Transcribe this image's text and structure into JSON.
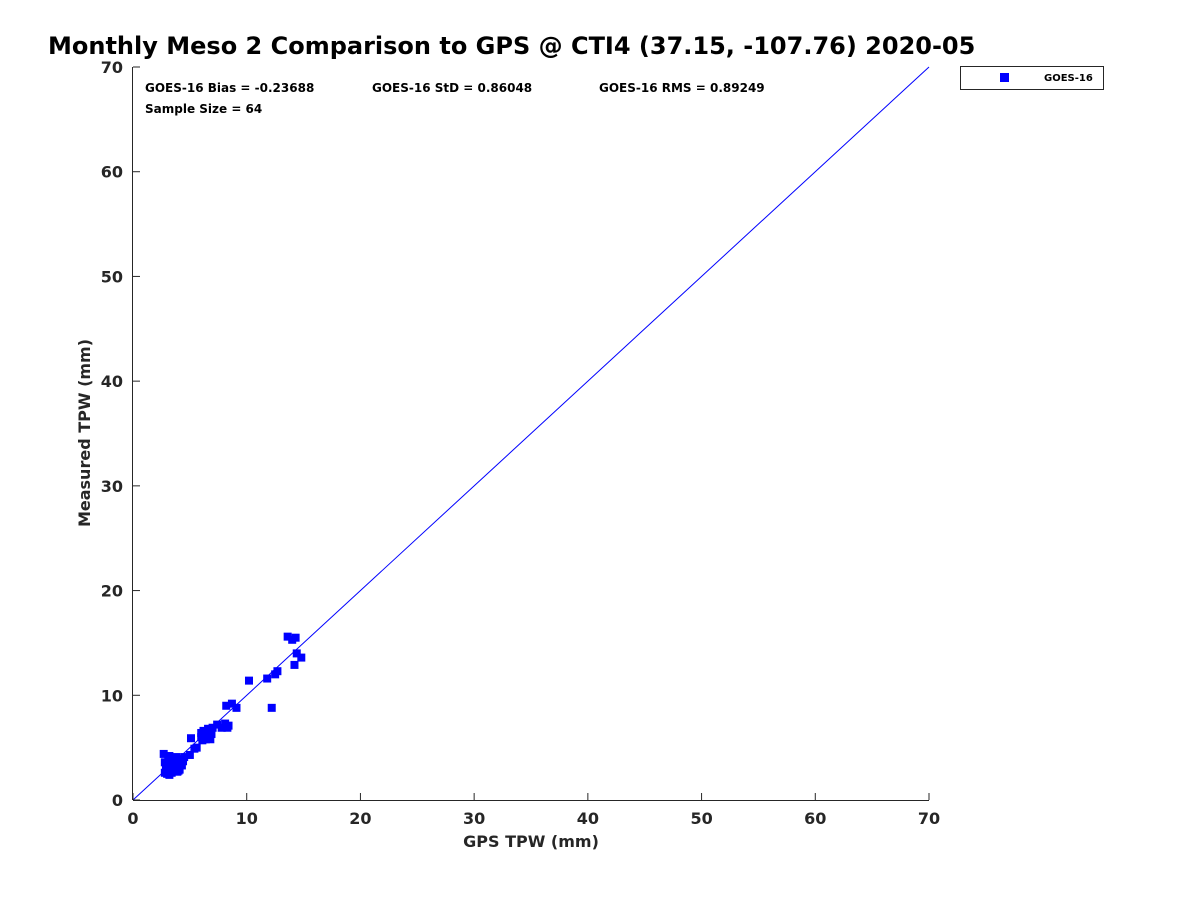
{
  "chart_data": {
    "type": "scatter",
    "title": "Monthly Meso 2 Comparison to GPS @ CTI4 (37.15, -107.76) 2020-05",
    "xlabel": "GPS TPW (mm)",
    "ylabel": "Measured TPW (mm)",
    "xlim": [
      0,
      70
    ],
    "ylim": [
      0,
      70
    ],
    "x_ticks": [
      "0",
      "10",
      "20",
      "30",
      "40",
      "50",
      "60",
      "70"
    ],
    "y_ticks": [
      "0",
      "10",
      "20",
      "30",
      "40",
      "50",
      "60",
      "70"
    ],
    "grid": false,
    "legend_position": "top-right, outside plot",
    "reference_line": {
      "type": "1:1",
      "color": "#0000ff"
    },
    "stats": {
      "bias": "GOES-16 Bias = -0.23688",
      "std": "GOES-16 StD = 0.86048",
      "rms": "GOES-16 RMS = 0.89249",
      "sample": "Sample Size = 64"
    },
    "series": [
      {
        "name": "GOES-16",
        "color": "#0000ff",
        "marker": "square",
        "points": [
          [
            2.7,
            4.4
          ],
          [
            2.8,
            2.6
          ],
          [
            2.9,
            3.1
          ],
          [
            3.0,
            2.5
          ],
          [
            3.0,
            3.4
          ],
          [
            3.1,
            2.8
          ],
          [
            3.2,
            4.2
          ],
          [
            3.3,
            3.0
          ],
          [
            3.4,
            2.6
          ],
          [
            3.5,
            3.6
          ],
          [
            3.6,
            2.9
          ],
          [
            3.7,
            3.8
          ],
          [
            3.8,
            3.2
          ],
          [
            3.9,
            2.7
          ],
          [
            4.0,
            3.5
          ],
          [
            4.1,
            2.9
          ],
          [
            4.2,
            3.9
          ],
          [
            4.3,
            3.3
          ],
          [
            4.5,
            4.1
          ],
          [
            2.8,
            3.6
          ],
          [
            3.2,
            2.4
          ],
          [
            3.6,
            3.3
          ],
          [
            4.0,
            2.8
          ],
          [
            3.4,
            3.9
          ],
          [
            5.0,
            4.3
          ],
          [
            5.1,
            5.9
          ],
          [
            5.4,
            4.9
          ],
          [
            6.0,
            6.4
          ],
          [
            6.1,
            5.7
          ],
          [
            6.2,
            6.2
          ],
          [
            6.3,
            6.0
          ],
          [
            6.4,
            5.8
          ],
          [
            6.5,
            6.5
          ],
          [
            6.6,
            6.8
          ],
          [
            6.7,
            6.1
          ],
          [
            6.8,
            5.8
          ],
          [
            6.9,
            6.3
          ],
          [
            6.2,
            6.6
          ],
          [
            7.4,
            7.2
          ],
          [
            7.8,
            6.9
          ],
          [
            8.1,
            7.3
          ],
          [
            8.2,
            9.0
          ],
          [
            8.3,
            6.9
          ],
          [
            8.4,
            7.1
          ],
          [
            8.7,
            9.2
          ],
          [
            9.1,
            8.8
          ],
          [
            10.2,
            11.4
          ],
          [
            11.8,
            11.6
          ],
          [
            12.2,
            8.8
          ],
          [
            12.5,
            12.0
          ],
          [
            12.7,
            12.3
          ],
          [
            13.6,
            15.6
          ],
          [
            14.0,
            15.3
          ],
          [
            14.3,
            15.5
          ],
          [
            14.2,
            12.9
          ],
          [
            14.4,
            14.0
          ],
          [
            14.8,
            13.6
          ],
          [
            6.0,
            6.0
          ],
          [
            7.0,
            6.9
          ],
          [
            5.6,
            5.0
          ],
          [
            4.4,
            3.7
          ],
          [
            3.1,
            3.8
          ],
          [
            2.9,
            2.9
          ],
          [
            3.8,
            4.1
          ]
        ]
      }
    ]
  }
}
